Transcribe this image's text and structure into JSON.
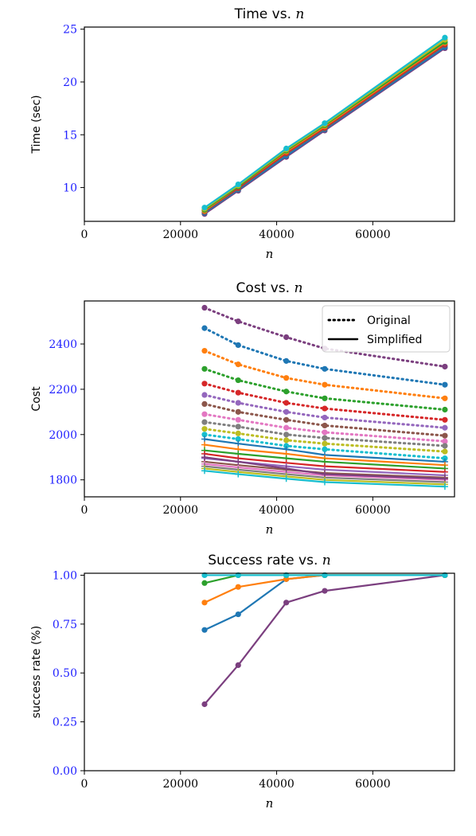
{
  "colors": {
    "ytick": "#1f1fff",
    "palette": [
      "#1f77b4",
      "#ff7f0e",
      "#2ca02c",
      "#d62728",
      "#9467bd",
      "#8c564b",
      "#e377c2",
      "#7f7f7f",
      "#bcbd22",
      "#17becf",
      "#7b3f7f"
    ]
  },
  "chart_data": [
    {
      "type": "line",
      "title": "Time vs.",
      "title_var": "n",
      "xlabel": "n",
      "ylabel": "Time (sec)",
      "xlim": [
        0,
        77000
      ],
      "ylim": [
        6.8,
        25.2
      ],
      "xticks": [
        0,
        20000,
        40000,
        60000
      ],
      "yticks": [
        10,
        15,
        20,
        25
      ],
      "x": [
        25000,
        32000,
        42000,
        50000,
        75000
      ],
      "series": [
        {
          "color": "#7b3f7f",
          "values": [
            7.5,
            9.7,
            12.9,
            15.4,
            23.2
          ]
        },
        {
          "color": "#1f77b4",
          "values": [
            7.6,
            9.8,
            13.0,
            15.5,
            23.3
          ]
        },
        {
          "color": "#8c564b",
          "values": [
            7.7,
            9.9,
            13.2,
            15.6,
            23.5
          ]
        },
        {
          "color": "#d62728",
          "values": [
            7.8,
            10.0,
            13.3,
            15.7,
            23.6
          ]
        },
        {
          "color": "#ff7f0e",
          "values": [
            7.8,
            10.1,
            13.4,
            15.8,
            23.7
          ]
        },
        {
          "color": "#2ca02c",
          "values": [
            7.9,
            10.1,
            13.5,
            15.9,
            23.8
          ]
        },
        {
          "color": "#bcbd22",
          "values": [
            8.0,
            10.2,
            13.6,
            16.0,
            24.0
          ]
        },
        {
          "color": "#17becf",
          "values": [
            8.1,
            10.3,
            13.7,
            16.1,
            24.2
          ]
        }
      ]
    },
    {
      "type": "line",
      "title": "Cost vs.",
      "title_var": "n",
      "xlabel": "n",
      "ylabel": "Cost",
      "xlim": [
        0,
        77000
      ],
      "ylim": [
        1725,
        2590
      ],
      "xticks": [
        0,
        20000,
        40000,
        60000
      ],
      "yticks": [
        1800,
        2000,
        2200,
        2400
      ],
      "x": [
        25000,
        32000,
        42000,
        50000,
        75000
      ],
      "legend": {
        "position": "top-right",
        "entries": [
          {
            "label": "Original",
            "style": "dotted"
          },
          {
            "label": "Simplified",
            "style": "solid"
          }
        ]
      },
      "series": [
        {
          "style": "dotted",
          "color": "#7b3f7f",
          "values": [
            2560,
            2500,
            2430,
            2380,
            2300
          ]
        },
        {
          "style": "dotted",
          "color": "#1f77b4",
          "values": [
            2470,
            2395,
            2325,
            2290,
            2220
          ]
        },
        {
          "style": "dotted",
          "color": "#ff7f0e",
          "values": [
            2370,
            2310,
            2250,
            2220,
            2160
          ]
        },
        {
          "style": "dotted",
          "color": "#2ca02c",
          "values": [
            2290,
            2240,
            2190,
            2160,
            2110
          ]
        },
        {
          "style": "dotted",
          "color": "#d62728",
          "values": [
            2225,
            2185,
            2140,
            2115,
            2065
          ]
        },
        {
          "style": "dotted",
          "color": "#9467bd",
          "values": [
            2175,
            2140,
            2100,
            2075,
            2030
          ]
        },
        {
          "style": "dotted",
          "color": "#8c564b",
          "values": [
            2135,
            2100,
            2065,
            2040,
            1995
          ]
        },
        {
          "style": "dotted",
          "color": "#e377c2",
          "values": [
            2090,
            2065,
            2030,
            2010,
            1970
          ]
        },
        {
          "style": "dotted",
          "color": "#7f7f7f",
          "values": [
            2055,
            2035,
            2000,
            1985,
            1950
          ]
        },
        {
          "style": "dotted",
          "color": "#bcbd22",
          "values": [
            2025,
            2005,
            1975,
            1960,
            1925
          ]
        },
        {
          "style": "dotted",
          "color": "#17becf",
          "values": [
            2000,
            1980,
            1950,
            1935,
            1895
          ]
        },
        {
          "style": "solid",
          "color": "#1f77b4",
          "values": [
            1980,
            1960,
            1935,
            1910,
            1880
          ]
        },
        {
          "style": "solid",
          "color": "#ff7f0e",
          "values": [
            1955,
            1935,
            1915,
            1895,
            1865
          ]
        },
        {
          "style": "solid",
          "color": "#2ca02c",
          "values": [
            1930,
            1915,
            1895,
            1880,
            1850
          ]
        },
        {
          "style": "solid",
          "color": "#d62728",
          "values": [
            1915,
            1895,
            1875,
            1860,
            1835
          ]
        },
        {
          "style": "solid",
          "color": "#9467bd",
          "values": [
            1895,
            1880,
            1860,
            1845,
            1820
          ]
        },
        {
          "style": "solid",
          "color": "#8c564b",
          "values": [
            1880,
            1865,
            1845,
            1830,
            1810
          ]
        },
        {
          "style": "solid",
          "color": "#e377c2",
          "values": [
            1870,
            1855,
            1835,
            1820,
            1800
          ]
        },
        {
          "style": "solid",
          "color": "#7f7f7f",
          "values": [
            1860,
            1845,
            1825,
            1810,
            1790
          ]
        },
        {
          "style": "solid",
          "color": "#7b3f7f",
          "values": [
            1900,
            1880,
            1850,
            1825,
            1805
          ]
        },
        {
          "style": "solid",
          "color": "#bcbd22",
          "values": [
            1850,
            1835,
            1815,
            1800,
            1780
          ]
        },
        {
          "style": "solid",
          "color": "#17becf",
          "values": [
            1840,
            1825,
            1805,
            1790,
            1770
          ]
        }
      ]
    },
    {
      "type": "line",
      "title": "Success rate vs.",
      "title_var": "n",
      "xlabel": "n",
      "ylabel": "success rate (%)",
      "xlim": [
        0,
        77000
      ],
      "ylim": [
        0,
        1.01
      ],
      "xticks": [
        0,
        20000,
        40000,
        60000
      ],
      "yticks": [
        "0.00",
        "0.25",
        "0.50",
        "0.75",
        "1.00"
      ],
      "x": [
        25000,
        32000,
        42000,
        50000,
        75000
      ],
      "series": [
        {
          "color": "#7b3f7f",
          "values": [
            0.34,
            0.54,
            0.86,
            0.92,
            1.0
          ]
        },
        {
          "color": "#1f77b4",
          "values": [
            0.72,
            0.8,
            0.98,
            1.0,
            1.0
          ]
        },
        {
          "color": "#ff7f0e",
          "values": [
            0.86,
            0.94,
            0.98,
            1.0,
            1.0
          ]
        },
        {
          "color": "#2ca02c",
          "values": [
            0.96,
            1.0,
            1.0,
            1.0,
            1.0
          ]
        },
        {
          "color": "#17becf",
          "values": [
            1.0,
            1.0,
            1.0,
            1.0,
            1.0
          ]
        }
      ]
    }
  ]
}
